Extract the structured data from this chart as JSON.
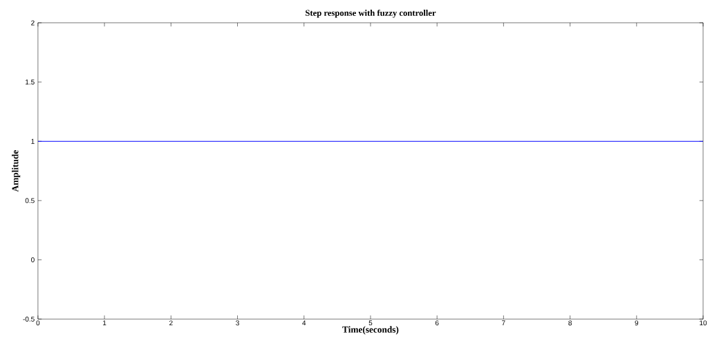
{
  "chart_data": {
    "type": "line",
    "title": "Step response with fuzzy controller",
    "xlabel": "Time(seconds)",
    "ylabel": "Amplitude",
    "x": [
      0,
      10
    ],
    "series": [
      {
        "color": "#0000ff",
        "values": [
          1,
          1
        ]
      }
    ],
    "xlim": [
      0,
      10
    ],
    "xticks": [
      0,
      1,
      2,
      3,
      4,
      5,
      6,
      7,
      8,
      9,
      10
    ],
    "ylim": [
      -0.5,
      2
    ],
    "yticks": [
      -0.5,
      0,
      0.5,
      1,
      1.5,
      2
    ],
    "grid": false,
    "marker": "none",
    "line_style": "solid"
  }
}
